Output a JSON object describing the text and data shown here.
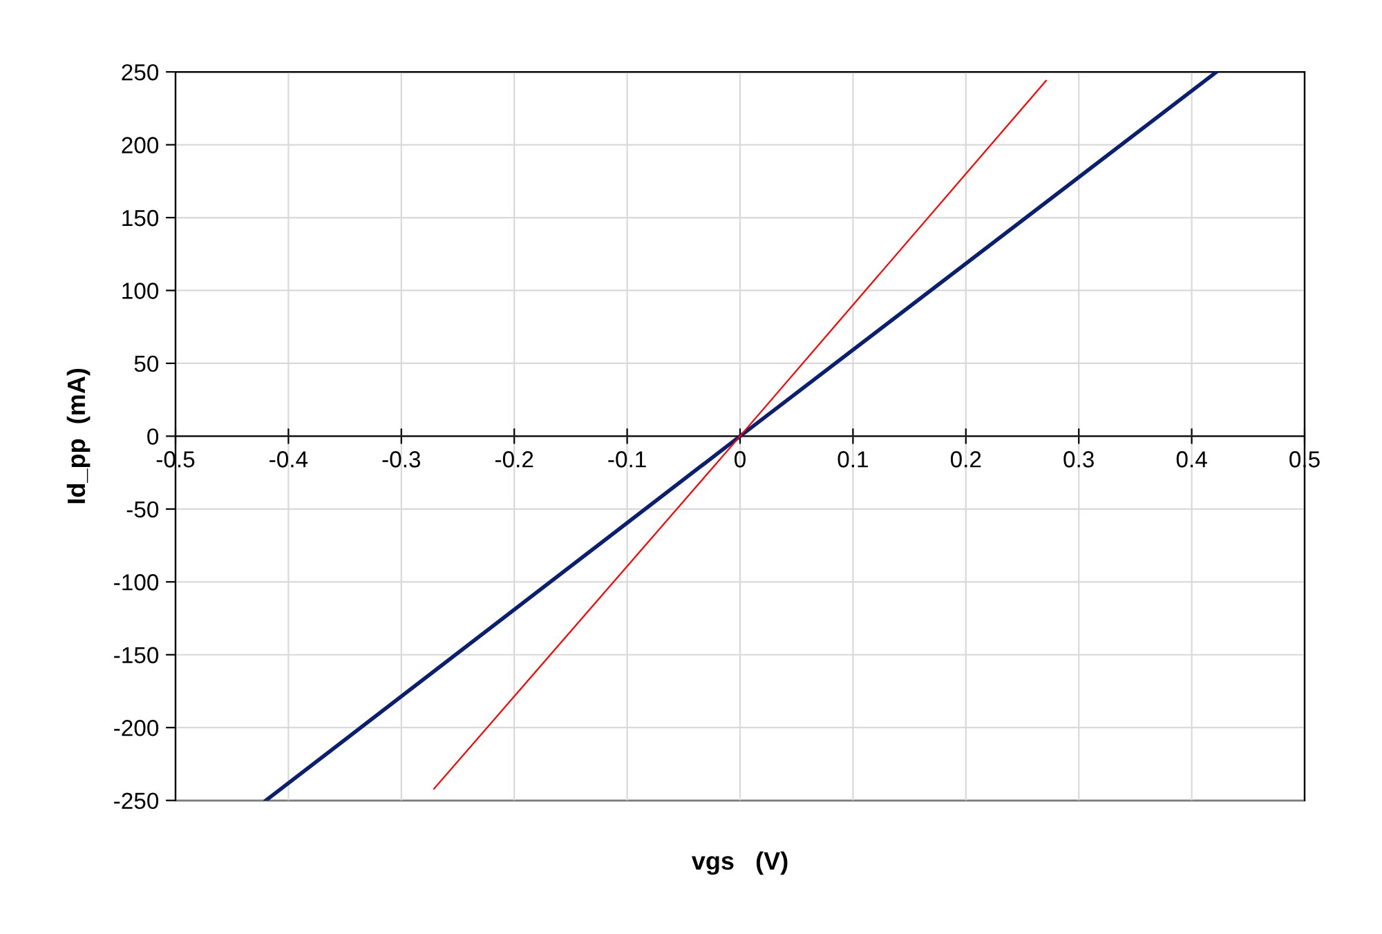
{
  "chart_data": {
    "type": "line",
    "xlabel": "vgs   (V)",
    "ylabel": "Id_pp  (mA)",
    "series": [
      {
        "color": "#0a1f6e",
        "x": [
          -0.42,
          0,
          0.422
        ],
        "values": [
          -250,
          0,
          250
        ]
      },
      {
        "color": "#ff0000",
        "x": [
          -0.271,
          0,
          0.271
        ],
        "values": [
          -242,
          0,
          244
        ]
      }
    ],
    "xlim": [
      -0.5,
      0.5
    ],
    "xticks": [
      -0.5,
      -0.4,
      -0.3,
      -0.2,
      -0.1,
      0,
      0.1,
      0.2,
      0.3,
      0.4,
      0.5
    ],
    "ylim": [
      -250,
      250
    ],
    "yticks": [
      -250,
      -200,
      -150,
      -100,
      -50,
      0,
      50,
      100,
      150,
      200,
      250
    ],
    "grid": true,
    "marker": "none",
    "line_style": "solid"
  }
}
